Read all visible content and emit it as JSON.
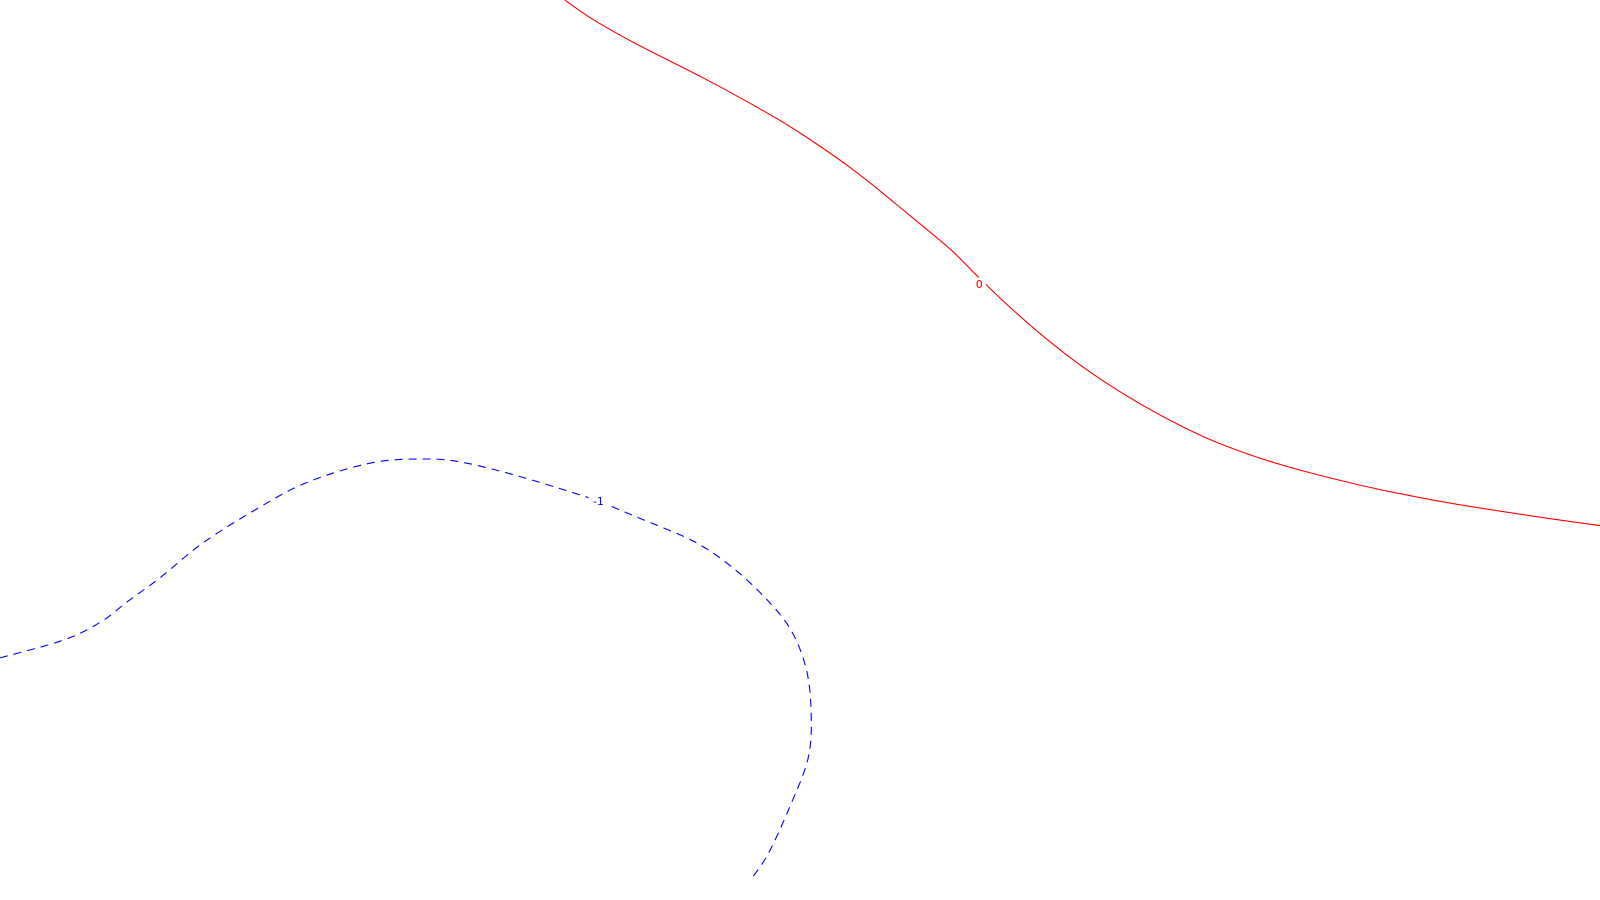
{
  "chart_data": {
    "type": "contour",
    "title": "",
    "xlabel": "",
    "ylabel": "",
    "grid": false,
    "legend": false,
    "xlim": [
      0,
      1
    ],
    "ylim": [
      0,
      1
    ],
    "levels": [
      {
        "value": 0,
        "label": "0",
        "color": "#ff0000",
        "dash": "solid",
        "points": [
          [
            0.353,
            1.0
          ],
          [
            0.371,
            0.978
          ],
          [
            0.399,
            0.95
          ],
          [
            0.44,
            0.913
          ],
          [
            0.476,
            0.878
          ],
          [
            0.502,
            0.85
          ],
          [
            0.535,
            0.809
          ],
          [
            0.567,
            0.763
          ],
          [
            0.594,
            0.723
          ],
          [
            0.611,
            0.693
          ],
          [
            0.631,
            0.659
          ],
          [
            0.655,
            0.622
          ],
          [
            0.681,
            0.587
          ],
          [
            0.71,
            0.554
          ],
          [
            0.739,
            0.526
          ],
          [
            0.764,
            0.506
          ],
          [
            0.8,
            0.484
          ],
          [
            0.85,
            0.461
          ],
          [
            0.9,
            0.443
          ],
          [
            0.96,
            0.426
          ],
          [
            1.0,
            0.416
          ]
        ],
        "label_at": [
          0.612,
          0.684
        ]
      },
      {
        "value": -1,
        "label": "-1",
        "color": "#0000ff",
        "dash": "dashed",
        "points": [
          [
            0.0,
            0.269
          ],
          [
            0.04,
            0.289
          ],
          [
            0.063,
            0.309
          ],
          [
            0.08,
            0.332
          ],
          [
            0.1,
            0.358
          ],
          [
            0.127,
            0.397
          ],
          [
            0.16,
            0.434
          ],
          [
            0.192,
            0.464
          ],
          [
            0.233,
            0.486
          ],
          [
            0.268,
            0.49
          ],
          [
            0.29,
            0.486
          ],
          [
            0.32,
            0.473
          ],
          [
            0.352,
            0.456
          ],
          [
            0.374,
            0.443
          ],
          [
            0.4,
            0.424
          ],
          [
            0.433,
            0.399
          ],
          [
            0.456,
            0.372
          ],
          [
            0.477,
            0.338
          ],
          [
            0.494,
            0.301
          ],
          [
            0.504,
            0.256
          ],
          [
            0.507,
            0.206
          ],
          [
            0.505,
            0.157
          ],
          [
            0.493,
            0.101
          ],
          [
            0.48,
            0.051
          ],
          [
            0.469,
            0.022
          ]
        ],
        "label_at": [
          0.374,
          0.443
        ]
      }
    ]
  }
}
